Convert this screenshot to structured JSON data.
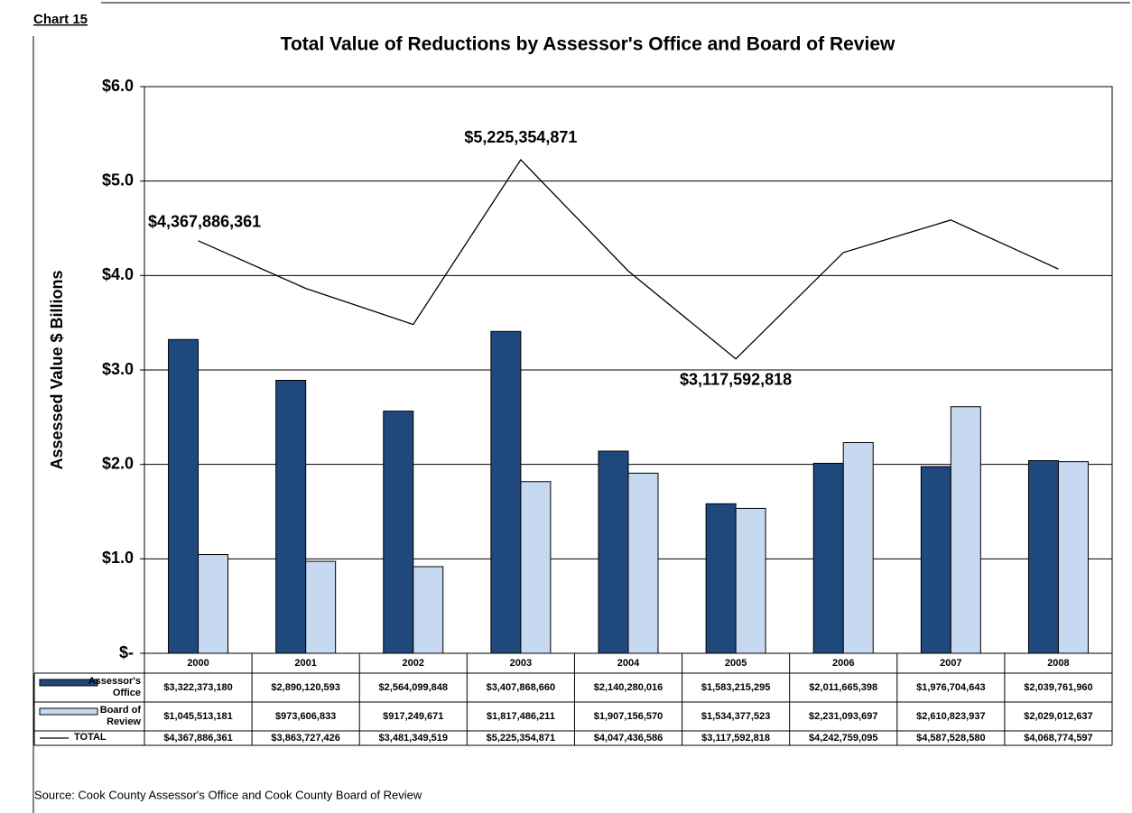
{
  "chart_data": {
    "type": "bar",
    "label": "Chart 15",
    "title": "Total Value of Reductions by Assessor's Office and Board of Review",
    "y_label": "Assessed Value $ Billions",
    "source": "Source: Cook County Assessor's Office and  Cook County Board of Review",
    "categories": [
      "2000",
      "2001",
      "2002",
      "2003",
      "2004",
      "2005",
      "2006",
      "2007",
      "2008"
    ],
    "series": [
      {
        "name": "Assessor's Office",
        "type": "bar",
        "color": "#1f497d",
        "values": [
          3.32237318,
          2.890120593,
          2.564099848,
          3.40786866,
          2.140280016,
          1.583215295,
          2.011665398,
          1.976704643,
          2.03976196
        ],
        "value_labels": [
          "$3,322,373,180",
          "$2,890,120,593",
          "$2,564,099,848",
          "$3,407,868,660",
          "$2,140,280,016",
          "$1,583,215,295",
          "$2,011,665,398",
          "$1,976,704,643",
          "$2,039,761,960"
        ]
      },
      {
        "name": "Board of Review",
        "type": "bar",
        "color": "#c6d9f1",
        "values": [
          1.045513181,
          0.973606833,
          0.917249671,
          1.817486211,
          1.90715657,
          1.534377523,
          2.231093697,
          2.610823937,
          2.029012637
        ],
        "value_labels": [
          "$1,045,513,181",
          "$973,606,833",
          "$917,249,671",
          "$1,817,486,211",
          "$1,907,156,570",
          "$1,534,377,523",
          "$2,231,093,697",
          "$2,610,823,937",
          "$2,029,012,637"
        ]
      },
      {
        "name": "TOTAL",
        "type": "line",
        "color": "#000000",
        "values": [
          4.367886361,
          3.863727426,
          3.481349519,
          5.225354871,
          4.047436586,
          3.117592818,
          4.242759095,
          4.58752858,
          4.068774597
        ],
        "value_labels": [
          "$4,367,886,361",
          "$3,863,727,426",
          "$3,481,349,519",
          "$5,225,354,871",
          "$4,047,436,586",
          "$3,117,592,818",
          "$4,242,759,095",
          "$4,587,528,580",
          "$4,068,774,597"
        ]
      }
    ],
    "annotations": [
      "$4,367,886,361",
      "$5,225,354,871",
      "$3,117,592,818"
    ],
    "ylim": [
      0,
      6
    ],
    "yticks": [
      {
        "value": 0,
        "label": "$-"
      },
      {
        "value": 1,
        "label": "$1.0"
      },
      {
        "value": 2,
        "label": "$2.0"
      },
      {
        "value": 3,
        "label": "$3.0"
      },
      {
        "value": 4,
        "label": "$4.0"
      },
      {
        "value": 5,
        "label": "$5.0"
      },
      {
        "value": 6,
        "label": "$6.0"
      }
    ],
    "grid": true,
    "data_table": true
  }
}
